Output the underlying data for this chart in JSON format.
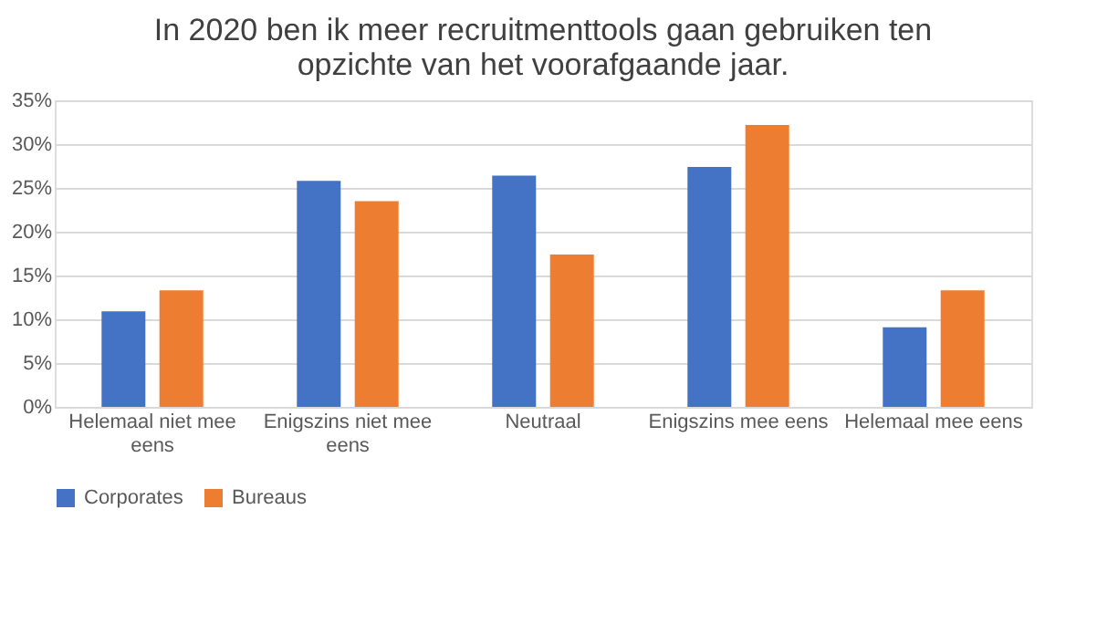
{
  "chart_data": {
    "type": "bar",
    "title": "In 2020 ben ik meer recruitmenttools gaan gebruiken ten opzichte van het voorafgaande jaar.",
    "categories": [
      "Helemaal niet mee eens",
      "Enigszins niet mee eens",
      "Neutraal",
      "Enigszins mee eens",
      "Helemaal mee eens"
    ],
    "series": [
      {
        "name": "Corporates",
        "color": "#4472c4",
        "values": [
          10.9,
          25.8,
          26.4,
          27.4,
          9.1
        ]
      },
      {
        "name": "Bureaus",
        "color": "#ed7d31",
        "values": [
          13.3,
          23.5,
          17.4,
          32.2,
          13.3
        ]
      }
    ],
    "ylim": [
      0,
      35
    ],
    "yticks": [
      {
        "value": 0,
        "label": "0%"
      },
      {
        "value": 5,
        "label": "5%"
      },
      {
        "value": 10,
        "label": "10%"
      },
      {
        "value": 15,
        "label": "15%"
      },
      {
        "value": 20,
        "label": "20%"
      },
      {
        "value": 25,
        "label": "25%"
      },
      {
        "value": 30,
        "label": "30%"
      },
      {
        "value": 35,
        "label": "35%"
      }
    ],
    "grid": "y",
    "legend": "bottom"
  }
}
